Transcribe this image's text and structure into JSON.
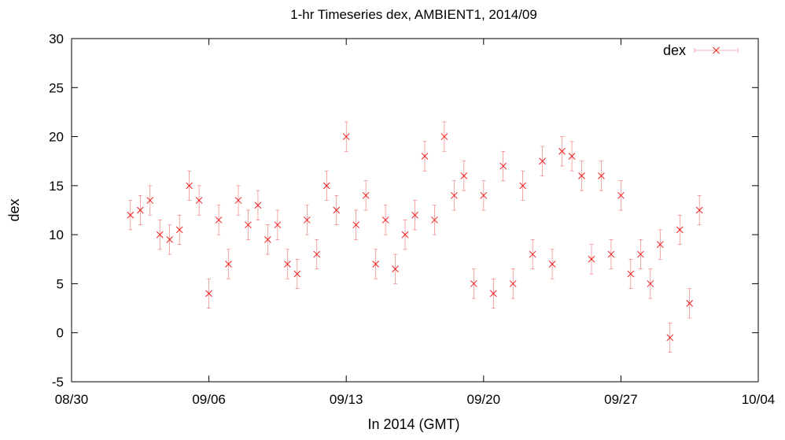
{
  "chart_data": {
    "type": "scatter",
    "title": "1-hr Timeseries dex, AMBIENT1, 2014/09",
    "xlabel": "In 2014 (GMT)",
    "ylabel": "dex",
    "x_ticks": [
      "08/30",
      "09/06",
      "09/13",
      "09/20",
      "09/27",
      "10/04"
    ],
    "x_range_days": [
      "2014-08-30",
      "2014-10-04"
    ],
    "y_ticks": [
      "-5",
      "0",
      "5",
      "10",
      "15",
      "20",
      "25",
      "30"
    ],
    "ylim": [
      -5,
      30
    ],
    "grid": false,
    "legend_position": "top-right",
    "marker_color": "#ee2020",
    "series": [
      {
        "name": "dex",
        "marker": "x",
        "error_bars": true,
        "x": [
          "2014-09-02",
          "2014-09-02 12:00",
          "2014-09-03",
          "2014-09-03 12:00",
          "2014-09-04",
          "2014-09-04 12:00",
          "2014-09-05",
          "2014-09-05 12:00",
          "2014-09-06",
          "2014-09-06 12:00",
          "2014-09-07",
          "2014-09-07 12:00",
          "2014-09-08",
          "2014-09-08 12:00",
          "2014-09-09",
          "2014-09-09 12:00",
          "2014-09-10",
          "2014-09-10 12:00",
          "2014-09-11",
          "2014-09-11 12:00",
          "2014-09-12",
          "2014-09-12 12:00",
          "2014-09-13",
          "2014-09-13 12:00",
          "2014-09-14",
          "2014-09-14 12:00",
          "2014-09-15",
          "2014-09-15 12:00",
          "2014-09-16",
          "2014-09-16 12:00",
          "2014-09-17",
          "2014-09-17 12:00",
          "2014-09-18",
          "2014-09-18 12:00",
          "2014-09-19",
          "2014-09-19 12:00",
          "2014-09-20",
          "2014-09-20 12:00",
          "2014-09-21",
          "2014-09-21 12:00",
          "2014-09-22",
          "2014-09-22 12:00",
          "2014-09-23",
          "2014-09-23 12:00",
          "2014-09-24",
          "2014-09-24 12:00",
          "2014-09-25",
          "2014-09-25 12:00",
          "2014-09-26",
          "2014-09-26 12:00",
          "2014-09-27",
          "2014-09-27 12:00",
          "2014-09-28",
          "2014-09-28 12:00",
          "2014-09-29",
          "2014-09-29 12:00",
          "2014-09-30",
          "2014-09-30 12:00",
          "2014-10-01"
        ],
        "y": [
          12.0,
          12.5,
          13.5,
          10.0,
          9.5,
          10.5,
          15.0,
          13.5,
          4.0,
          11.5,
          7.0,
          13.5,
          11.0,
          13.0,
          9.5,
          11.0,
          7.0,
          6.0,
          11.5,
          8.0,
          15.0,
          12.5,
          20.0,
          11.0,
          14.0,
          7.0,
          11.5,
          6.5,
          10.0,
          12.0,
          18.0,
          11.5,
          20.0,
          14.0,
          16.0,
          5.0,
          14.0,
          4.0,
          17.0,
          5.0,
          15.0,
          8.0,
          17.5,
          7.0,
          18.5,
          18.0,
          16.0,
          7.5,
          16.0,
          8.0,
          14.0,
          6.0,
          8.0,
          5.0,
          9.0,
          -0.5,
          10.5,
          3.0,
          12.5
        ],
        "y_err": 1.5
      }
    ]
  }
}
